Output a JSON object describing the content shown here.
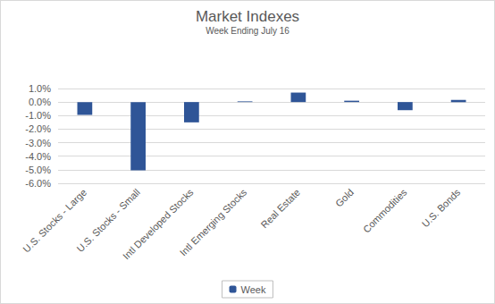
{
  "chart_data": {
    "type": "bar",
    "title": "Market Indexes",
    "subtitle": "Week Ending July 16",
    "categories": [
      "U.S. Stocks - Large",
      "U.S. Stocks - Small",
      "Intl Developed Stocks",
      "Intl Emerging Stocks",
      "Real Estate",
      "Gold",
      "Commodities",
      "U.S. Bonds"
    ],
    "series": [
      {
        "name": "Week",
        "color": "#2f5597",
        "values": [
          -0.95,
          -5.05,
          -1.5,
          0.05,
          0.7,
          0.1,
          -0.6,
          0.15
        ]
      }
    ],
    "ylim": [
      -6,
      1
    ],
    "yticks": [
      {
        "value": -6,
        "label": "-6.0%"
      },
      {
        "value": -5,
        "label": "-5.0%"
      },
      {
        "value": -4,
        "label": "-4.0%"
      },
      {
        "value": -3,
        "label": "-3.0%"
      },
      {
        "value": -2,
        "label": "-2.0%"
      },
      {
        "value": -1,
        "label": "-1.0%"
      },
      {
        "value": 0,
        "label": "0.0%"
      },
      {
        "value": 1,
        "label": "1.0%"
      }
    ],
    "grid": true,
    "legend": "bottom"
  }
}
